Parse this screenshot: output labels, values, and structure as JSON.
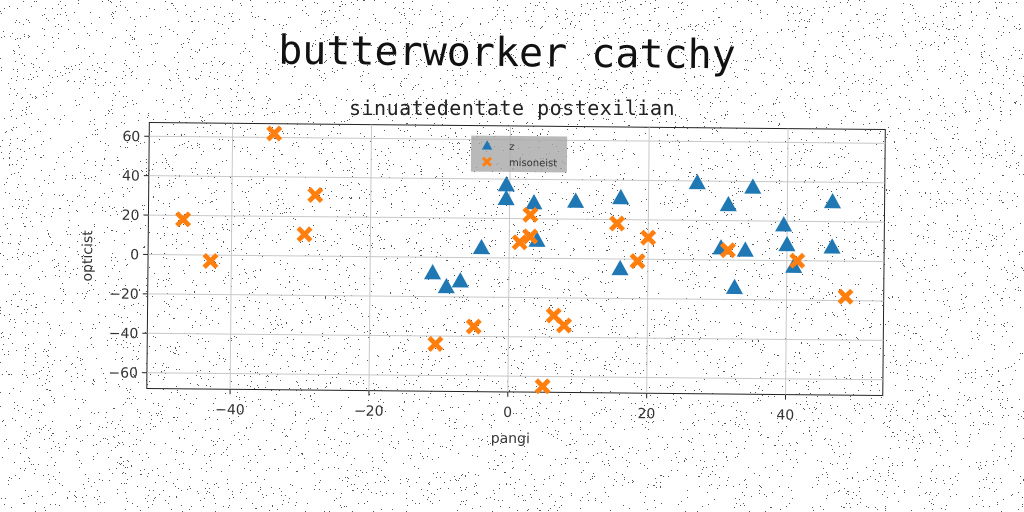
{
  "chart_data": {
    "type": "scatter",
    "title": "butterworker catchy",
    "subtitle": "sinuatedentate postexilian",
    "xlabel": "pangi",
    "ylabel": "opticist",
    "xlim": [
      -52,
      54
    ],
    "ylim": [
      -68,
      67
    ],
    "xticks": [
      -40,
      -20,
      0,
      20,
      40
    ],
    "yticks": [
      -60,
      -40,
      -20,
      0,
      20,
      40,
      60
    ],
    "grid": true,
    "legend_position": "top-center",
    "series": [
      {
        "name": "z",
        "marker": "triangle",
        "color": "#1f77b4",
        "points": [
          [
            -11,
            -8
          ],
          [
            -9,
            -15
          ],
          [
            -7,
            -12
          ],
          [
            -4,
            5
          ],
          [
            -0.5,
            37
          ],
          [
            -0.5,
            30
          ],
          [
            3.5,
            28
          ],
          [
            4,
            9
          ],
          [
            9.5,
            29
          ],
          [
            16,
            31
          ],
          [
            16,
            -5
          ],
          [
            27,
            39
          ],
          [
            30.5,
            6
          ],
          [
            31.5,
            28
          ],
          [
            32.5,
            -14
          ],
          [
            34,
            5
          ],
          [
            35,
            37
          ],
          [
            39.5,
            18
          ],
          [
            40,
            8
          ],
          [
            41,
            -3
          ],
          [
            46.5,
            30
          ],
          [
            46.5,
            7
          ]
        ]
      },
      {
        "name": "misoneist",
        "marker": "x",
        "color": "#ff7f0e",
        "points": [
          [
            -47,
            18
          ],
          [
            -43,
            -3
          ],
          [
            -34,
            62
          ],
          [
            -28,
            31
          ],
          [
            -29.5,
            11
          ],
          [
            -10.5,
            -44
          ],
          [
            -5,
            -35
          ],
          [
            1.5,
            8
          ],
          [
            3,
            22
          ],
          [
            3,
            11
          ],
          [
            6.5,
            -29
          ],
          [
            8,
            -34
          ],
          [
            5,
            -65
          ],
          [
            15.5,
            18
          ],
          [
            18.5,
            -1
          ],
          [
            20,
            11
          ],
          [
            31.5,
            5
          ],
          [
            41.5,
            0
          ],
          [
            48.5,
            -18
          ]
        ]
      }
    ]
  }
}
